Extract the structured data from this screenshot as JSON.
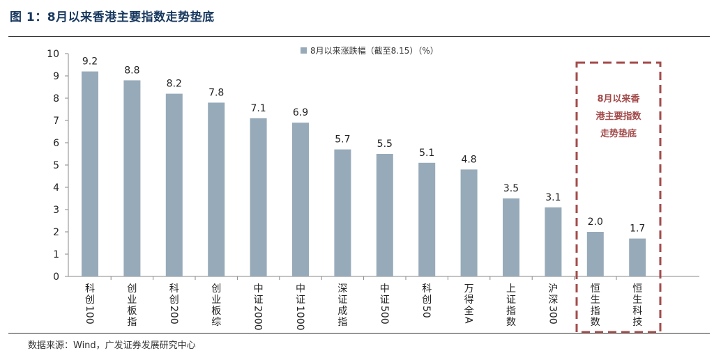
{
  "figure": {
    "title": "图 1：8月以来香港主要指数走势垫底",
    "source": "数据来源：Wind，广发证券发展研究中心"
  },
  "chart_data": {
    "type": "bar",
    "categories": [
      "科创100",
      "创业板指",
      "科创200",
      "创业板综",
      "中证2000",
      "中证1000",
      "深证成指",
      "中证500",
      "科创50",
      "万得全A",
      "上证指数",
      "沪深300",
      "恒生指数",
      "恒生科技"
    ],
    "series": [
      {
        "name": "8月以来涨跌幅（截至8.15）（%）",
        "values": [
          9.2,
          8.8,
          8.2,
          7.8,
          7.1,
          6.9,
          5.7,
          5.5,
          5.1,
          4.8,
          3.5,
          3.1,
          2.0,
          1.7
        ]
      }
    ],
    "data_labels": [
      "9.2",
      "8.8",
      "8.2",
      "7.8",
      "7.1",
      "6.9",
      "5.7",
      "5.5",
      "5.1",
      "4.8",
      "3.5",
      "3.1",
      "2.0",
      "1.7"
    ],
    "ylim": [
      0,
      10
    ],
    "yticks": [
      "0",
      "1",
      "2",
      "3",
      "4",
      "5",
      "6",
      "7",
      "8",
      "9",
      "10"
    ],
    "grid": false,
    "legend_position": "top-center",
    "bar_color": "#97aab9",
    "annotation": {
      "text_lines": [
        "8月以来香",
        "港主要指数",
        "走势垫底"
      ],
      "color": "#a34a4a",
      "highlighted_categories": [
        "恒生指数",
        "恒生科技"
      ]
    }
  }
}
